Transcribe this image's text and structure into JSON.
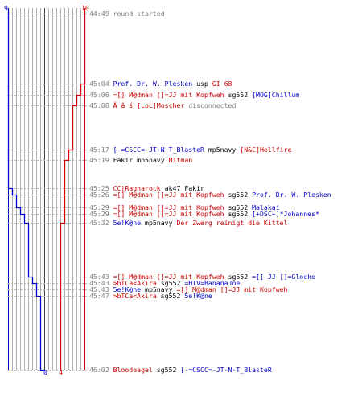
{
  "header": {
    "blue_score": "9",
    "red_score": "10"
  },
  "footer": {
    "blue_score": "0",
    "red_score": "4"
  },
  "colors": {
    "blue": "#0000cc",
    "red": "#cc0000",
    "grey": "#808080",
    "black": "#000000"
  },
  "events": [
    {
      "time": "44:49",
      "parts": [
        {
          "text": "round started",
          "c": "grey"
        }
      ]
    },
    {
      "time": "45:04",
      "parts": [
        {
          "text": "Prof. Dr. W. Plesken",
          "c": "blue"
        },
        {
          "text": " usp ",
          "c": "black"
        },
        {
          "text": "GI 68",
          "c": "red"
        }
      ]
    },
    {
      "time": "45:06",
      "parts": [
        {
          "text": "=[] M@dman []=JJ mit Kopfweh",
          "c": "red"
        },
        {
          "text": " sg552 ",
          "c": "black"
        },
        {
          "text": "[MOG]Chillum",
          "c": "blue"
        }
      ]
    },
    {
      "time": "45:08",
      "parts": [
        {
          "text": "Ä â ś  [LoL]Moscher",
          "c": "red"
        },
        {
          "text": " disconnected",
          "c": "grey"
        }
      ]
    },
    {
      "time": "45:17",
      "parts": [
        {
          "text": "[-=CSCC=-JT-N-T_BlasteR",
          "c": "blue"
        },
        {
          "text": " mp5navy ",
          "c": "black"
        },
        {
          "text": "[N&C]Hellfire",
          "c": "red"
        }
      ]
    },
    {
      "time": "45:19",
      "parts": [
        {
          "text": "Fakir",
          "c": "black"
        },
        {
          "text": " mp5navy ",
          "c": "black"
        },
        {
          "text": "Hitman",
          "c": "red"
        }
      ]
    },
    {
      "time": "45:25",
      "parts": [
        {
          "text": "CC|Ragnarock",
          "c": "red"
        },
        {
          "text": " ak47 ",
          "c": "black"
        },
        {
          "text": "Fakir",
          "c": "black"
        }
      ]
    },
    {
      "time": "45:26",
      "parts": [
        {
          "text": "=[] M@dman []=JJ mit Kopfweh",
          "c": "red"
        },
        {
          "text": " sg552 ",
          "c": "black"
        },
        {
          "text": "Prof. Dr. W. Plesken",
          "c": "blue"
        }
      ]
    },
    {
      "time": "45:29",
      "parts": [
        {
          "text": "=[] M@dman []=JJ mit Kopfweh",
          "c": "red"
        },
        {
          "text": " sg552 ",
          "c": "black"
        },
        {
          "text": "Malakai",
          "c": "blue"
        }
      ]
    },
    {
      "time": "45:29",
      "parts": [
        {
          "text": "=[] M@dman []=JJ mit Kopfweh",
          "c": "red"
        },
        {
          "text": " sg552 ",
          "c": "black"
        },
        {
          "text": "[+DSC+]*Johannes*",
          "c": "blue"
        }
      ]
    },
    {
      "time": "45:32",
      "parts": [
        {
          "text": "5e!K@ne",
          "c": "blue"
        },
        {
          "text": " mp5navy ",
          "c": "black"
        },
        {
          "text": "Der Zwerg reinigt die Kittel",
          "c": "red"
        }
      ]
    },
    {
      "time": "45:43",
      "parts": [
        {
          "text": "=[] M@dman []=JJ mit Kopfweh",
          "c": "red"
        },
        {
          "text": " sg552 ",
          "c": "black"
        },
        {
          "text": "=[] JJ []=Glocke",
          "c": "blue"
        }
      ]
    },
    {
      "time": "45:43",
      "parts": [
        {
          "text": ">bTCa<Akira",
          "c": "red"
        },
        {
          "text": " sg552 ",
          "c": "black"
        },
        {
          "text": "=HIV=BananaJoe",
          "c": "blue"
        }
      ]
    },
    {
      "time": "45:43",
      "parts": [
        {
          "text": "5e!K@ne",
          "c": "blue"
        },
        {
          "text": " mp5navy ",
          "c": "black"
        },
        {
          "text": "=[] M@dman []=JJ mit Kopfweh",
          "c": "red"
        }
      ]
    },
    {
      "time": "45:47",
      "parts": [
        {
          "text": ">bTCa<Akira",
          "c": "red"
        },
        {
          "text": " sg552 ",
          "c": "black"
        },
        {
          "text": "5e!K@ne",
          "c": "blue"
        }
      ]
    },
    {
      "time": "46:02",
      "parts": [
        {
          "text": "Bloodeagel",
          "c": "red"
        },
        {
          "text": " sg552 ",
          "c": "black"
        },
        {
          "text": "[-=CSCC=-JT-N-T_BlasteR",
          "c": "blue"
        }
      ]
    }
  ],
  "chart_data": {
    "type": "line",
    "x_label": "",
    "y_label": "",
    "series": [
      {
        "color": "#0000cc",
        "points": [
          [
            "44:49",
            9
          ],
          [
            "45:25",
            9
          ],
          [
            "45:26",
            8
          ],
          [
            "45:29",
            7
          ],
          [
            "45:29",
            6
          ],
          [
            "45:43",
            5
          ],
          [
            "45:43",
            4
          ],
          [
            "45:47",
            3
          ],
          [
            "46:02",
            2
          ],
          [
            "46:02",
            0
          ]
        ]
      },
      {
        "color": "#cc0000",
        "points": [
          [
            "44:49",
            10
          ],
          [
            "45:04",
            10
          ],
          [
            "45:06",
            9
          ],
          [
            "45:08",
            8
          ],
          [
            "45:17",
            7
          ],
          [
            "45:19",
            6
          ],
          [
            "45:32",
            5
          ],
          [
            "45:43",
            4
          ],
          [
            "46:02",
            4
          ]
        ]
      }
    ]
  }
}
